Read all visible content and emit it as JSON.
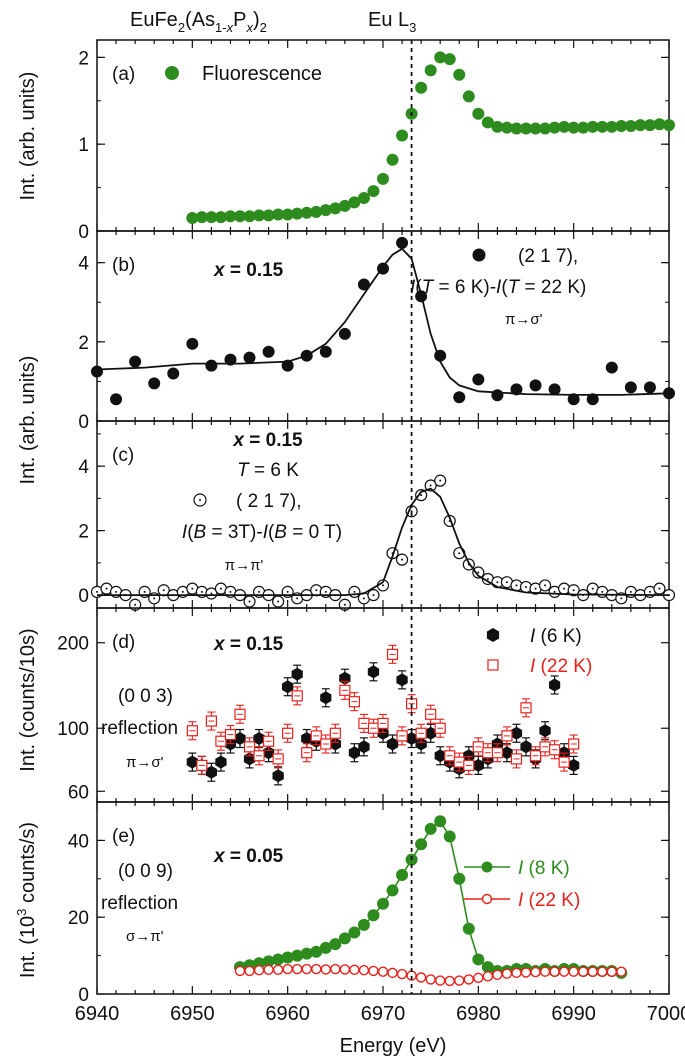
{
  "header": {
    "compound": {
      "base": "EuFe",
      "s1": "2",
      "mid": "(As",
      "s2": "1-",
      "x1": "x",
      "mid2": "P",
      "x2": "x",
      "end": ")",
      "s3": "2"
    },
    "edge": {
      "base": "Eu L",
      "sub": "3"
    }
  },
  "xaxis": {
    "label": "Energy (eV)",
    "min": 6940,
    "max": 7000,
    "ticks": [
      "6940",
      "6950",
      "6960",
      "6970",
      "6980",
      "6990",
      "7000"
    ]
  },
  "edge_energy": 6973,
  "colors": {
    "green": "#2e8b1e",
    "red": "#e8201c",
    "black": "#111111"
  },
  "chart_data": [
    {
      "id": "a",
      "type": "scatter",
      "panel_label": "(a)",
      "ylabel": "Int. (arb. units)",
      "ylim": [
        0,
        2.2
      ],
      "yticks": [
        "0",
        "1",
        "2"
      ],
      "legend": [
        "Fluorescence"
      ],
      "series": [
        {
          "name": "Fluorescence",
          "marker": "filled-circle",
          "color": "#2e8b1e",
          "x": [
            6950,
            6951,
            6952,
            6953,
            6954,
            6955,
            6956,
            6957,
            6958,
            6959,
            6960,
            6961,
            6962,
            6963,
            6964,
            6965,
            6966,
            6967,
            6968,
            6969,
            6970,
            6971,
            6972,
            6973,
            6974,
            6975,
            6976,
            6977,
            6978,
            6979,
            6980,
            6981,
            6982,
            6983,
            6984,
            6985,
            6986,
            6987,
            6988,
            6989,
            6990,
            6991,
            6992,
            6993,
            6994,
            6995,
            6996,
            6997,
            6998,
            6999,
            7000
          ],
          "y": [
            0.15,
            0.16,
            0.16,
            0.16,
            0.17,
            0.17,
            0.17,
            0.18,
            0.18,
            0.19,
            0.19,
            0.2,
            0.21,
            0.22,
            0.24,
            0.26,
            0.29,
            0.33,
            0.38,
            0.46,
            0.6,
            0.82,
            1.1,
            1.35,
            1.65,
            1.85,
            2.0,
            1.98,
            1.8,
            1.55,
            1.35,
            1.25,
            1.2,
            1.19,
            1.18,
            1.18,
            1.18,
            1.18,
            1.19,
            1.2,
            1.19,
            1.19,
            1.2,
            1.2,
            1.2,
            1.21,
            1.21,
            1.22,
            1.22,
            1.23,
            1.22
          ]
        }
      ]
    },
    {
      "id": "b",
      "type": "scatter",
      "panel_label": "(b)",
      "ylabel": "Int. (arb. units)",
      "ylim": [
        0,
        4.8
      ],
      "yticks": [
        "0",
        "2",
        "4"
      ],
      "bold_note": "x = 0.15",
      "legend_lines": [
        "(2 1 7),",
        "I(T = 6 K)-I(T = 22 K)",
        "π→σ'"
      ],
      "series": [
        {
          "name": "(2 1 7)",
          "marker": "filled-circle",
          "color": "#111111",
          "x": [
            6940,
            6942,
            6944,
            6946,
            6948,
            6950,
            6952,
            6954,
            6956,
            6958,
            6960,
            6962,
            6964,
            6966,
            6968,
            6970,
            6972,
            6974,
            6976,
            6978,
            6980,
            6982,
            6984,
            6986,
            6988,
            6990,
            6992,
            6994,
            6996,
            6998,
            7000
          ],
          "y": [
            1.25,
            0.55,
            1.5,
            0.95,
            1.2,
            1.95,
            1.4,
            1.55,
            1.6,
            1.75,
            1.4,
            1.65,
            1.75,
            2.2,
            3.45,
            3.85,
            4.5,
            3.15,
            1.65,
            0.6,
            1.05,
            0.65,
            0.8,
            0.9,
            0.8,
            0.55,
            0.55,
            1.35,
            0.85,
            0.85,
            0.7
          ]
        },
        {
          "name": "fit",
          "line": true,
          "color": "#111111",
          "x": [
            6940,
            6945,
            6950,
            6955,
            6960,
            6962,
            6964,
            6966,
            6968,
            6970,
            6971,
            6972,
            6973,
            6974,
            6975,
            6976,
            6977,
            6978,
            6980,
            6985,
            6990,
            6995,
            7000
          ],
          "y": [
            1.3,
            1.35,
            1.45,
            1.45,
            1.5,
            1.65,
            1.95,
            2.5,
            3.2,
            3.9,
            4.2,
            4.35,
            4.1,
            3.2,
            2.2,
            1.5,
            1.1,
            0.9,
            0.75,
            0.68,
            0.66,
            0.66,
            0.7
          ]
        }
      ]
    },
    {
      "id": "c",
      "type": "scatter",
      "panel_label": "(c)",
      "ylabel": "",
      "ylim": [
        -0.4,
        5.4
      ],
      "yticks": [
        "0",
        "2",
        "4"
      ],
      "bold_note": "x = 0.15",
      "note_lines": [
        "T = 6 K",
        "( 2 1 7),",
        "I(B = 3T)-I(B = 0 T)",
        "π→π'"
      ],
      "series": [
        {
          "name": "( 2 1 7)",
          "marker": "open-dot-circle",
          "color": "#111111",
          "x": [
            6940,
            6941,
            6942,
            6943,
            6944,
            6945,
            6946,
            6947,
            6948,
            6949,
            6950,
            6951,
            6952,
            6953,
            6954,
            6955,
            6956,
            6957,
            6958,
            6959,
            6960,
            6961,
            6962,
            6963,
            6964,
            6965,
            6966,
            6967,
            6968,
            6969,
            6970,
            6971,
            6972,
            6973,
            6974,
            6975,
            6976,
            6977,
            6978,
            6979,
            6980,
            6981,
            6982,
            6983,
            6984,
            6985,
            6986,
            6987,
            6988,
            6989,
            6990,
            6991,
            6992,
            6993,
            6994,
            6995,
            6996,
            6997,
            6998,
            6999,
            7000
          ],
          "y": [
            0.1,
            0.2,
            0.1,
            0.0,
            -0.3,
            0.1,
            -0.1,
            0.15,
            0.0,
            0.1,
            0.2,
            0.1,
            0.05,
            0.2,
            0.1,
            0.0,
            -0.2,
            0.1,
            0.0,
            -0.2,
            0.1,
            -0.1,
            0.0,
            0.15,
            0.1,
            0.0,
            -0.3,
            0.1,
            -0.1,
            0.0,
            0.3,
            1.3,
            1.1,
            2.6,
            3.1,
            3.4,
            3.55,
            2.3,
            1.3,
            0.95,
            0.7,
            0.5,
            0.4,
            0.4,
            0.3,
            0.25,
            0.2,
            0.3,
            0.1,
            0.2,
            0.15,
            0.0,
            0.2,
            0.1,
            0.0,
            -0.1,
            0.1,
            0.0,
            0.1,
            0.2,
            0.0
          ]
        },
        {
          "name": "fit",
          "line": true,
          "color": "#111111",
          "x": [
            6940,
            6950,
            6960,
            6966,
            6968,
            6970,
            6971,
            6972,
            6973,
            6974,
            6975,
            6976,
            6977,
            6978,
            6979,
            6980,
            6982,
            6985,
            6990,
            7000
          ],
          "y": [
            0.0,
            0.0,
            0.0,
            0.0,
            0.05,
            0.4,
            1.2,
            2.1,
            2.8,
            3.2,
            3.3,
            3.05,
            2.4,
            1.6,
            1.0,
            0.6,
            0.25,
            0.08,
            0.02,
            0.0
          ]
        }
      ]
    },
    {
      "id": "d",
      "type": "scatter",
      "panel_label": "(d)",
      "ylabel": "Int. (counts/10s)",
      "ylim": [
        55,
        265
      ],
      "yticks": [
        "60",
        "100",
        "200"
      ],
      "ytick_values": [
        60,
        100,
        200
      ],
      "log_scale": true,
      "bold_note": "x = 0.15",
      "side_note": [
        "(0 0 3)",
        "reflection",
        "π→σ'"
      ],
      "series": [
        {
          "name": "I (6 K)",
          "marker": "filled-hex-errbar",
          "color": "#111111",
          "x": [
            6950,
            6951,
            6952,
            6953,
            6954,
            6955,
            6956,
            6957,
            6958,
            6959,
            6960,
            6961,
            6962,
            6963,
            6964,
            6965,
            6966,
            6967,
            6968,
            6969,
            6970,
            6971,
            6972,
            6973,
            6974,
            6975,
            6976,
            6977,
            6978,
            6979,
            6980,
            6981,
            6982,
            6983,
            6984,
            6985,
            6986,
            6987,
            6988,
            6989,
            6990
          ],
          "y": [
            76,
            74,
            70,
            76,
            88,
            92,
            78,
            92,
            82,
            68,
            140,
            155,
            92,
            90,
            128,
            88,
            150,
            82,
            86,
            158,
            96,
            88,
            148,
            92,
            88,
            96,
            80,
            76,
            72,
            80,
            74,
            78,
            88,
            82,
            96,
            86,
            78,
            98,
            142,
            82,
            74
          ]
        },
        {
          "name": "I (22 K)",
          "marker": "open-square-errbar",
          "color": "#e8201c",
          "x": [
            6950,
            6951,
            6952,
            6953,
            6954,
            6955,
            6956,
            6957,
            6958,
            6959,
            6960,
            6961,
            6962,
            6963,
            6964,
            6965,
            6966,
            6967,
            6968,
            6969,
            6970,
            6971,
            6972,
            6973,
            6974,
            6975,
            6976,
            6977,
            6978,
            6979,
            6980,
            6981,
            6982,
            6983,
            6984,
            6985,
            6986,
            6987,
            6988,
            6989,
            6990
          ],
          "y": [
            98,
            74,
            106,
            90,
            95,
            112,
            86,
            80,
            90,
            78,
            96,
            130,
            82,
            94,
            88,
            96,
            136,
            124,
            104,
            100,
            104,
            182,
            94,
            122,
            96,
            112,
            100,
            80,
            76,
            74,
            86,
            82,
            82,
            94,
            78,
            118,
            80,
            86,
            84,
            76,
            88
          ]
        }
      ]
    },
    {
      "id": "e",
      "type": "line",
      "panel_label": "(e)",
      "ylabel": "Int. (10³ counts/s)",
      "ylabel_parts": {
        "a": "Int. (10",
        "sup": "3",
        "b": " counts/s)"
      },
      "ylim": [
        0,
        50
      ],
      "yticks": [
        "0",
        "20",
        "40"
      ],
      "bold_note": "x = 0.05",
      "side_note": [
        "(0 0 9)",
        "reflection",
        "σ→π'"
      ],
      "series": [
        {
          "name": "I (8 K)",
          "marker": "filled-circle",
          "color": "#2e8b1e",
          "x": [
            6955,
            6956,
            6957,
            6958,
            6959,
            6960,
            6961,
            6962,
            6963,
            6964,
            6965,
            6966,
            6967,
            6968,
            6969,
            6970,
            6971,
            6972,
            6973,
            6974,
            6975,
            6976,
            6977,
            6978,
            6979,
            6980,
            6981,
            6982,
            6983,
            6984,
            6985,
            6986,
            6987,
            6988,
            6989,
            6990,
            6991,
            6992,
            6993,
            6994,
            6995
          ],
          "y": [
            7,
            7.5,
            8,
            8.5,
            9,
            9.5,
            10,
            10.5,
            11,
            12,
            13,
            14.5,
            16,
            18,
            20.5,
            23.5,
            27,
            31,
            35,
            39,
            43,
            45,
            41,
            30,
            17,
            9,
            7,
            6,
            6,
            6.5,
            6.5,
            6,
            6.5,
            6,
            6.5,
            6.5,
            6,
            6,
            6,
            6,
            5.5
          ]
        },
        {
          "name": "I (22 K)",
          "marker": "open-circle",
          "color": "#e8201c",
          "x": [
            6955,
            6956,
            6957,
            6958,
            6959,
            6960,
            6961,
            6962,
            6963,
            6964,
            6965,
            6966,
            6967,
            6968,
            6969,
            6970,
            6971,
            6972,
            6973,
            6974,
            6975,
            6976,
            6977,
            6978,
            6979,
            6980,
            6981,
            6982,
            6983,
            6984,
            6985,
            6986,
            6987,
            6988,
            6989,
            6990,
            6991,
            6992,
            6993,
            6994,
            6995
          ],
          "y": [
            6,
            6,
            6.2,
            6.3,
            6.3,
            6.5,
            6.5,
            6.5,
            6.5,
            6.4,
            6.5,
            6.4,
            6.3,
            6.2,
            6,
            5.8,
            5.5,
            5.2,
            4.8,
            4.3,
            3.8,
            3.5,
            3.4,
            3.5,
            3.8,
            4.2,
            4.6,
            5,
            5.3,
            5.5,
            5.6,
            5.7,
            5.8,
            5.8,
            5.8,
            5.8,
            5.8,
            5.8,
            5.8,
            5.8,
            5.8
          ]
        }
      ]
    }
  ]
}
